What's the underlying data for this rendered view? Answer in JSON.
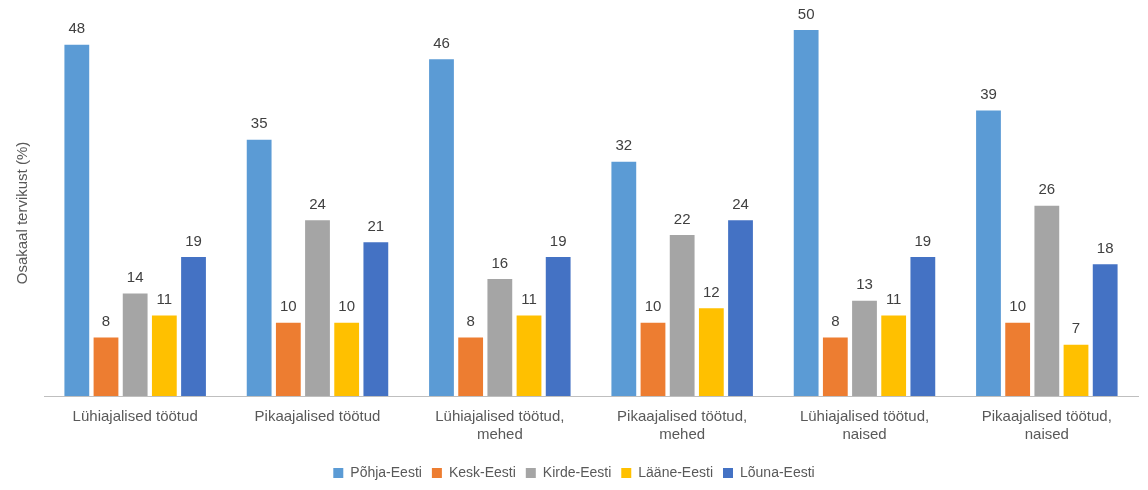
{
  "chart_data": {
    "type": "bar",
    "ylabel": "Osakaal tervikust (%)",
    "categories": [
      "Lühiajalised töötud",
      "Pikaajalised töötud",
      "Lühiajalised töötud, mehed",
      "Pikaajalised töötud, mehed",
      "Lühiajalised töötud, naised",
      "Pikaajalised töötud, naised"
    ],
    "series": [
      {
        "name": "Põhja-Eesti",
        "color": "#5b9bd5",
        "values": [
          48,
          35,
          46,
          32,
          50,
          39
        ]
      },
      {
        "name": "Kesk-Eesti",
        "color": "#ed7d31",
        "values": [
          8,
          10,
          8,
          10,
          8,
          10
        ]
      },
      {
        "name": "Kirde-Eesti",
        "color": "#a5a5a5",
        "values": [
          14,
          24,
          16,
          22,
          13,
          26
        ]
      },
      {
        "name": "Lääne-Eesti",
        "color": "#ffc000",
        "values": [
          11,
          10,
          11,
          12,
          11,
          7
        ]
      },
      {
        "name": "Lõuna-Eesti",
        "color": "#4472c4",
        "values": [
          19,
          21,
          19,
          24,
          19,
          18
        ]
      }
    ],
    "data_labels": true,
    "grid": false,
    "legend": "bottom"
  }
}
